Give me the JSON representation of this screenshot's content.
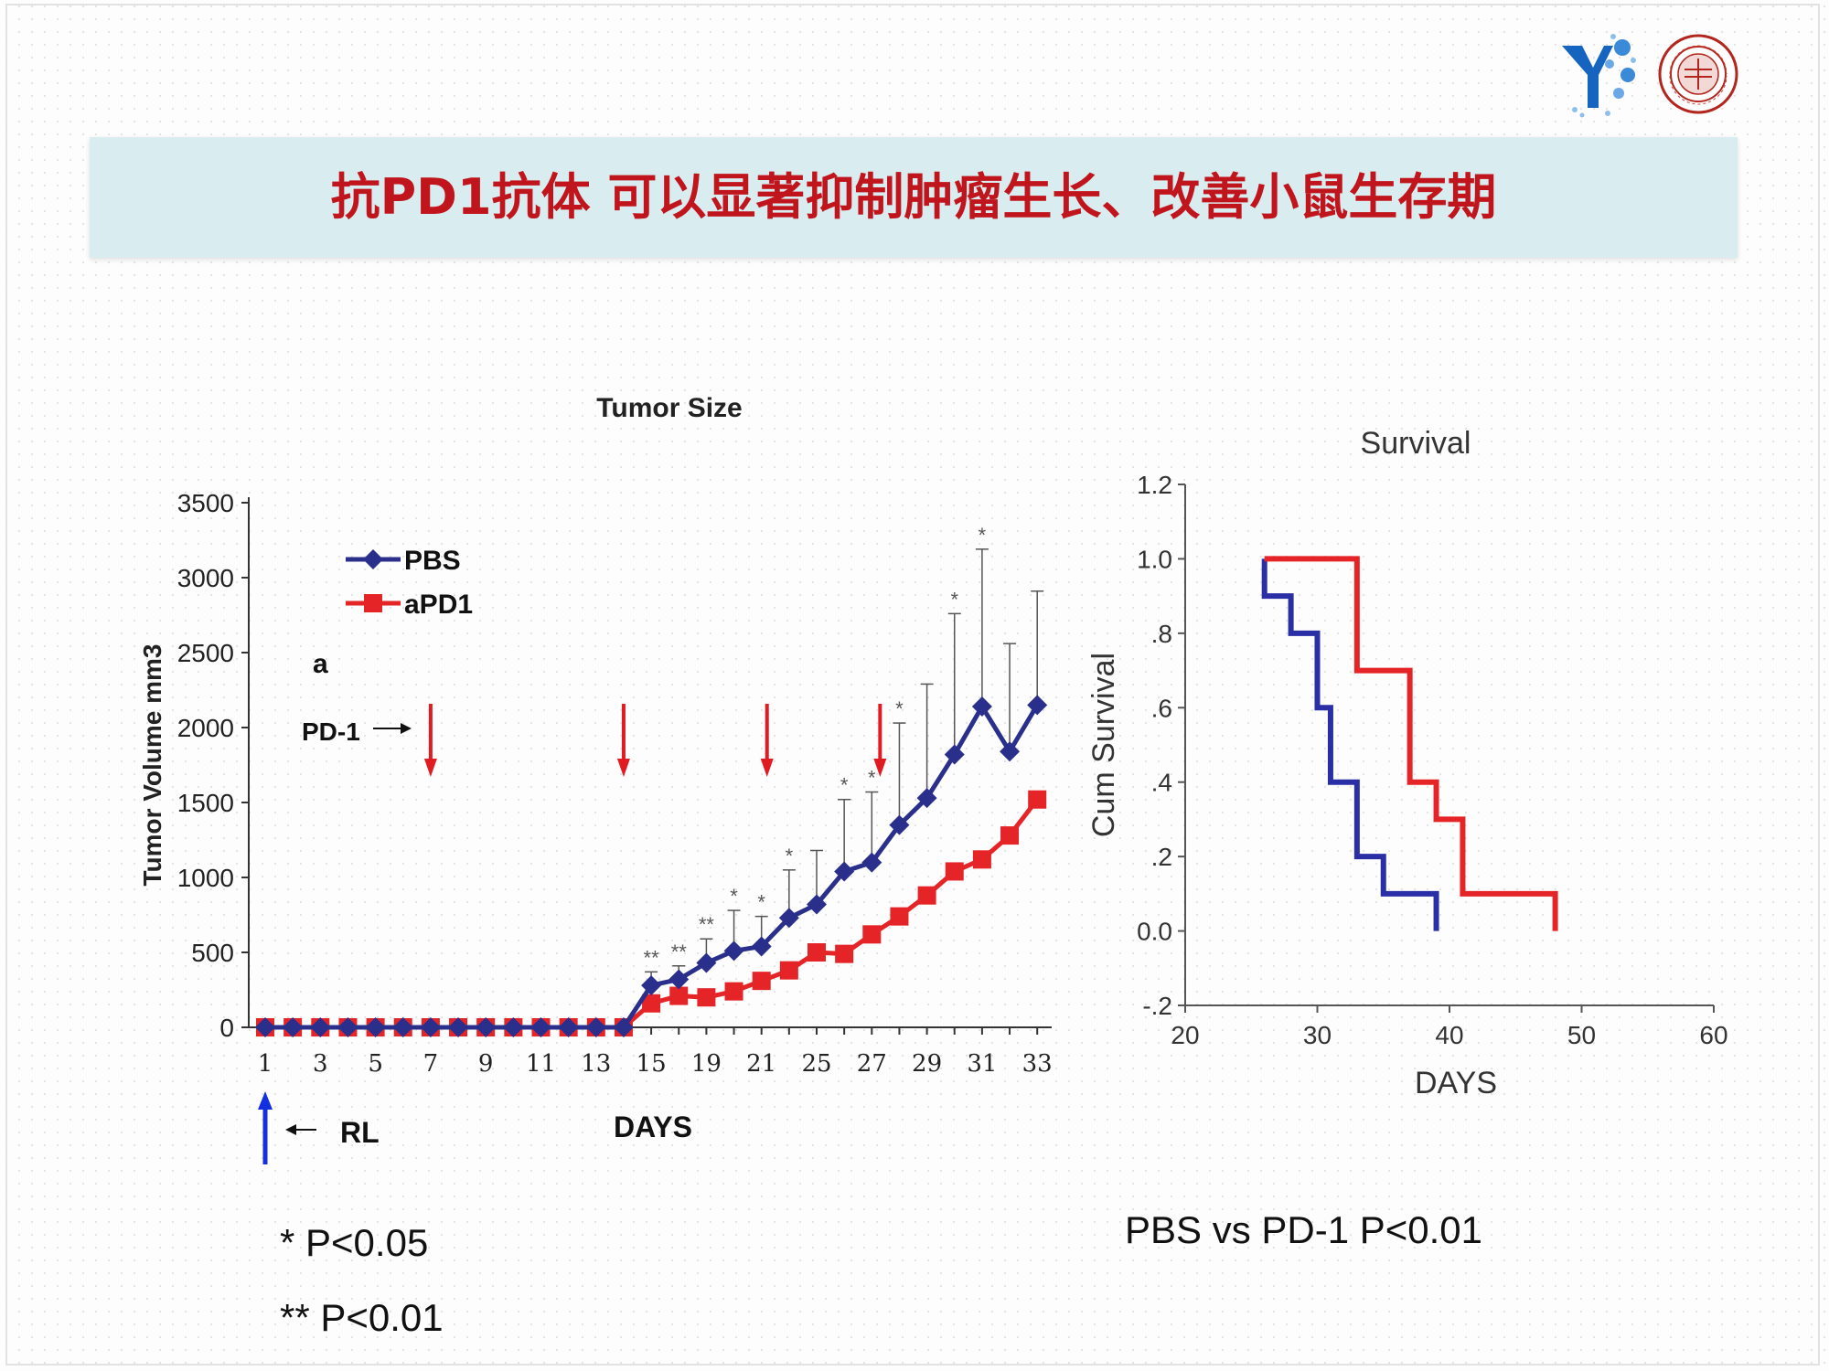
{
  "slide": {
    "title": "抗PD1抗体 可以显著抑制肿瘤生长、改善小鼠生存期",
    "logos": {
      "left": "y-logo-icon",
      "right": "university-seal-icon"
    }
  },
  "notes": {
    "p05": "*  P<0.05",
    "p01": "** P<0.01",
    "survival_p": "PBS vs PD-1 P<0.01"
  },
  "chart_data": [
    {
      "type": "line",
      "title": "Tumor Size",
      "xlabel": "DAYS",
      "ylabel": "Tumor Volume mm3",
      "panel_label": "a",
      "ylim": [
        0,
        3500
      ],
      "y_ticks": [
        0,
        500,
        1000,
        1500,
        2000,
        2500,
        3000,
        3500
      ],
      "x_tick_labels": [
        "1",
        "3",
        "5",
        "7",
        "9",
        "11",
        "13",
        "15",
        "19",
        "21",
        "25",
        "27",
        "29",
        "31",
        "33"
      ],
      "legend": {
        "placement": "top-left",
        "entries": [
          "PBS",
          "aPD1"
        ]
      },
      "colors": {
        "PBS": "#2b2f8c",
        "aPD1": "#e52428",
        "arrows": "#e11b22",
        "rl_arrow": "#1230e0"
      },
      "series": [
        {
          "name": "PBS",
          "marker": "diamond",
          "values": [
            0,
            0,
            0,
            0,
            0,
            0,
            0,
            0,
            0,
            0,
            0,
            0,
            0,
            0,
            280,
            320,
            430,
            510,
            540,
            730,
            820,
            1040,
            1100,
            1350,
            1530,
            1820,
            2140,
            1840,
            2150
          ],
          "error": [
            0,
            0,
            0,
            0,
            0,
            0,
            0,
            0,
            0,
            0,
            0,
            0,
            0,
            0,
            90,
            90,
            160,
            270,
            200,
            320,
            360,
            480,
            470,
            680,
            760,
            940,
            1050,
            720,
            760
          ]
        },
        {
          "name": "aPD1",
          "marker": "square",
          "values": [
            0,
            0,
            0,
            0,
            0,
            0,
            0,
            0,
            0,
            0,
            0,
            0,
            0,
            0,
            160,
            210,
            200,
            240,
            310,
            380,
            500,
            490,
            620,
            740,
            880,
            1040,
            1120,
            1280,
            1520
          ],
          "error": [
            0,
            0,
            0,
            0,
            0,
            0,
            0,
            0,
            0,
            0,
            0,
            0,
            0,
            0,
            0,
            0,
            0,
            0,
            0,
            0,
            0,
            0,
            0,
            0,
            0,
            0,
            0,
            0,
            0
          ]
        }
      ],
      "significance": [
        {
          "point": 14,
          "label": "**"
        },
        {
          "point": 15,
          "label": "**"
        },
        {
          "point": 16,
          "label": "**"
        },
        {
          "point": 17,
          "label": "*"
        },
        {
          "point": 18,
          "label": "*"
        },
        {
          "point": 19,
          "label": "*"
        },
        {
          "point": 21,
          "label": "*"
        },
        {
          "point": 22,
          "label": "*"
        },
        {
          "point": 23,
          "label": "*"
        },
        {
          "point": 25,
          "label": "*"
        },
        {
          "point": 26,
          "label": "*"
        }
      ],
      "treatment": {
        "label": "PD-1",
        "arrow_points": [
          6,
          13,
          18.2,
          22.3
        ]
      },
      "inoculation": {
        "label": "RL",
        "arrow_point": 0
      }
    },
    {
      "type": "line",
      "step": true,
      "title": "Survival",
      "xlabel": "DAYS",
      "ylabel": "Cum Survival",
      "xlim": [
        20,
        60
      ],
      "ylim": [
        -0.2,
        1.2
      ],
      "x_ticks": [
        "20",
        "30",
        "40",
        "50",
        "60"
      ],
      "y_ticks": [
        "1.2",
        "1.0",
        ".8",
        ".6",
        ".4",
        ".2",
        "0.0",
        "-.2"
      ],
      "colors": {
        "PBS": "#2b2fa6",
        "aPD1": "#e52428"
      },
      "series": [
        {
          "name": "PBS",
          "x": [
            26,
            26,
            28,
            28,
            30,
            30,
            31,
            31,
            33,
            33,
            35,
            35,
            39,
            39
          ],
          "y": [
            1.0,
            0.9,
            0.9,
            0.8,
            0.8,
            0.6,
            0.6,
            0.4,
            0.4,
            0.2,
            0.2,
            0.1,
            0.1,
            0.0
          ]
        },
        {
          "name": "aPD1",
          "x": [
            26,
            33,
            33,
            37,
            37,
            39,
            39,
            41,
            41,
            48,
            48
          ],
          "y": [
            1.0,
            1.0,
            0.7,
            0.7,
            0.4,
            0.4,
            0.3,
            0.3,
            0.1,
            0.1,
            0.0
          ]
        }
      ]
    }
  ]
}
